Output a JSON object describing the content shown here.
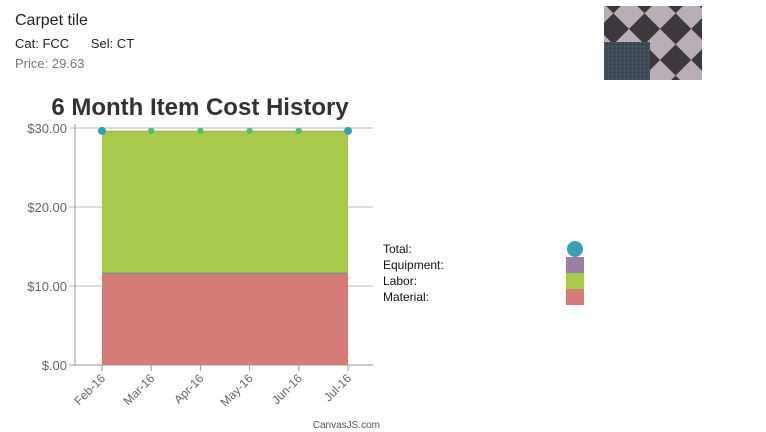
{
  "item": {
    "name": "Carpet tile",
    "cat_label": "Cat: FCC",
    "sel_label": "Sel: CT",
    "price_label": "Price: 29.63"
  },
  "colors": {
    "total": "#3aa0b0",
    "equipment": "#9b7ea6",
    "labor": "#a8c94c",
    "material": "#d47a77"
  },
  "chart_data": {
    "type": "area",
    "title": "6 Month Item Cost History",
    "categories": [
      "Feb-16",
      "Mar-16",
      "Apr-16",
      "May-16",
      "Jun-16",
      "Jul-16"
    ],
    "y_ticks": [
      "$.00",
      "$10.00",
      "$20.00",
      "$30.00"
    ],
    "ylim": [
      0,
      30
    ],
    "grid": true,
    "legend_position": "right",
    "stacked": true,
    "series": [
      {
        "name": "Material:",
        "values": [
          11.5,
          11.5,
          11.5,
          11.5,
          11.5,
          11.5
        ]
      },
      {
        "name": "Equipment:",
        "values": [
          0.2,
          0.2,
          0.2,
          0.2,
          0.2,
          0.2
        ]
      },
      {
        "name": "Labor:",
        "values": [
          17.93,
          17.93,
          17.93,
          17.93,
          17.93,
          17.93
        ]
      }
    ],
    "total": {
      "name": "Total:",
      "values": [
        29.63,
        29.63,
        29.63,
        29.63,
        29.63,
        29.63
      ]
    },
    "legend_order": [
      "Total:",
      "Equipment:",
      "Labor:",
      "Material:"
    ],
    "credit": "CanvasJS.com"
  }
}
